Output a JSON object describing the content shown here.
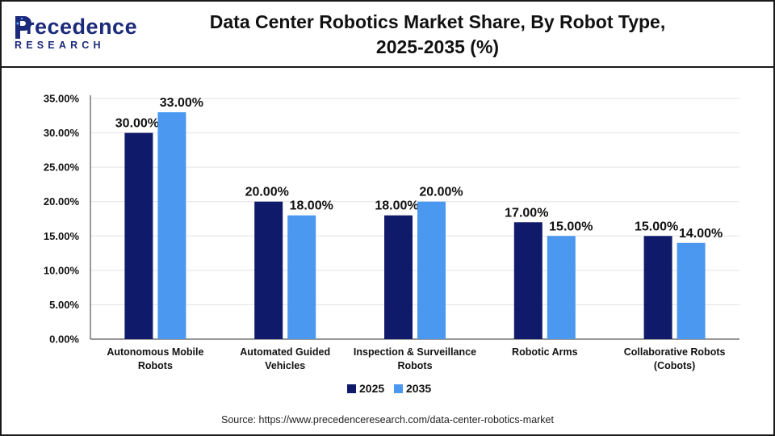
{
  "logo": {
    "word": "recedence",
    "initial": "P",
    "sub": "RESEARCH"
  },
  "title": {
    "line1": "Data Center Robotics Market Share, By Robot Type,",
    "line2": "2025-2035 (%)"
  },
  "source": "Source: https://www.precedenceresearch.com/data-center-robotics-market",
  "colors": {
    "series_2025": "#0f1a6b",
    "series_2035": "#4a98f0",
    "grid": "#e3e3e3",
    "axis": "#333333"
  },
  "chart_data": {
    "type": "bar",
    "title": "Data Center Robotics Market Share, By Robot Type, 2025-2035 (%)",
    "categories": [
      [
        "Autonomous Mobile",
        "Robots"
      ],
      [
        "Automated Guided",
        "Vehicles"
      ],
      [
        "Inspection & Surveillance",
        "Robots"
      ],
      [
        "Robotic Arms"
      ],
      [
        "Collaborative Robots",
        "(Cobots)"
      ]
    ],
    "series": [
      {
        "name": "2025",
        "values": [
          30.0,
          20.0,
          18.0,
          17.0,
          15.0
        ],
        "labels": [
          "30.00%",
          "20.00%",
          "18.00%",
          "17.00%",
          "15.00%"
        ]
      },
      {
        "name": "2035",
        "values": [
          33.0,
          18.0,
          20.0,
          15.0,
          14.0
        ],
        "labels": [
          "33.00%",
          "18.00%",
          "20.00%",
          "15.00%",
          "14.00%"
        ]
      }
    ],
    "ylim": [
      0,
      35
    ],
    "yticks": [
      "0.00%",
      "5.00%",
      "10.00%",
      "15.00%",
      "20.00%",
      "25.00%",
      "30.00%",
      "35.00%"
    ],
    "grid": true,
    "legend": "bottom-center"
  }
}
